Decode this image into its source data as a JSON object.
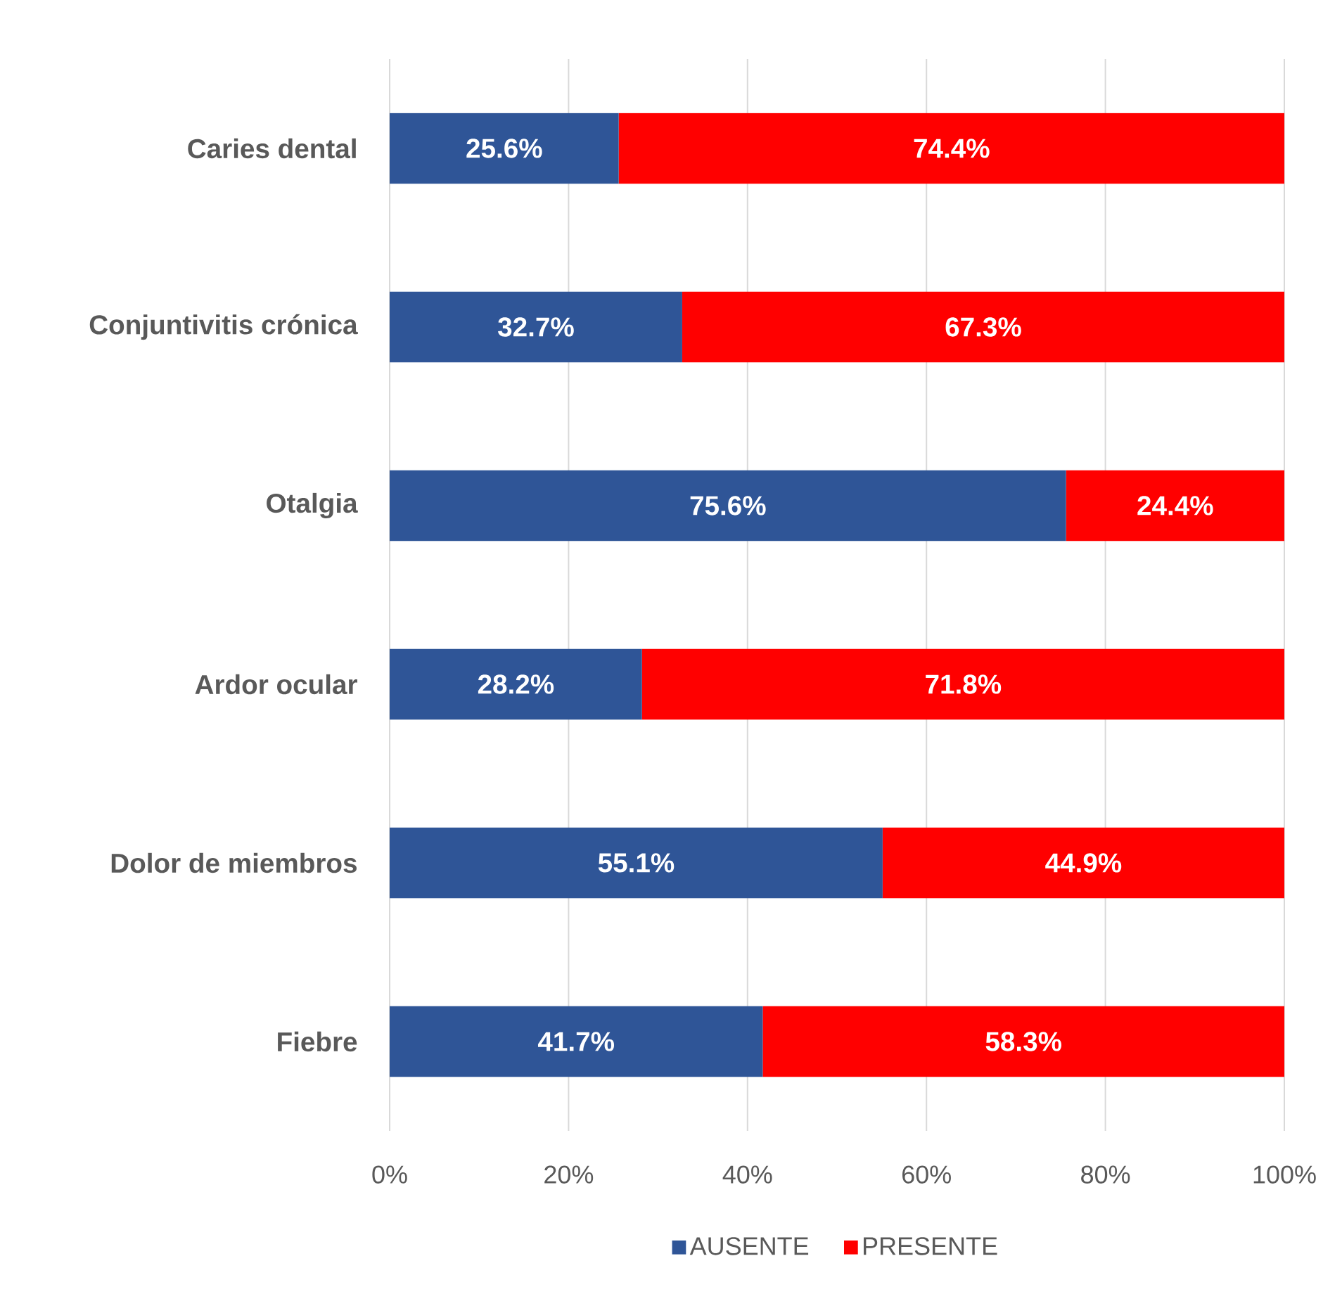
{
  "chart_data": {
    "type": "bar",
    "orientation": "horizontal",
    "stacked": true,
    "categories": [
      "Caries dental",
      "Conjuntivitis crónica",
      "Otalgia",
      "Ardor ocular",
      "Dolor de miembros",
      "Fiebre"
    ],
    "series": [
      {
        "name": "AUSENTE",
        "color": "#2f5597",
        "values": [
          25.6,
          32.7,
          75.6,
          28.2,
          55.1,
          41.7
        ],
        "value_labels": [
          "25.6%",
          "32.7%",
          "75.6%",
          "28.2%",
          "55.1%",
          "41.7%"
        ]
      },
      {
        "name": "PRESENTE",
        "color": "#ff0000",
        "values": [
          74.4,
          67.3,
          24.4,
          71.8,
          44.9,
          58.3
        ],
        "value_labels": [
          "74.4%",
          "67.3%",
          "24.4%",
          "71.8%",
          "44.9%",
          "58.3%"
        ]
      }
    ],
    "xlim": [
      0,
      100
    ],
    "xticks": [
      {
        "value": 0,
        "label": "0%"
      },
      {
        "value": 20,
        "label": "20%"
      },
      {
        "value": 40,
        "label": "40%"
      },
      {
        "value": 60,
        "label": "60%"
      },
      {
        "value": 80,
        "label": "80%"
      },
      {
        "value": 100,
        "label": "100%"
      }
    ],
    "grid": "x",
    "legend": "bottom"
  }
}
